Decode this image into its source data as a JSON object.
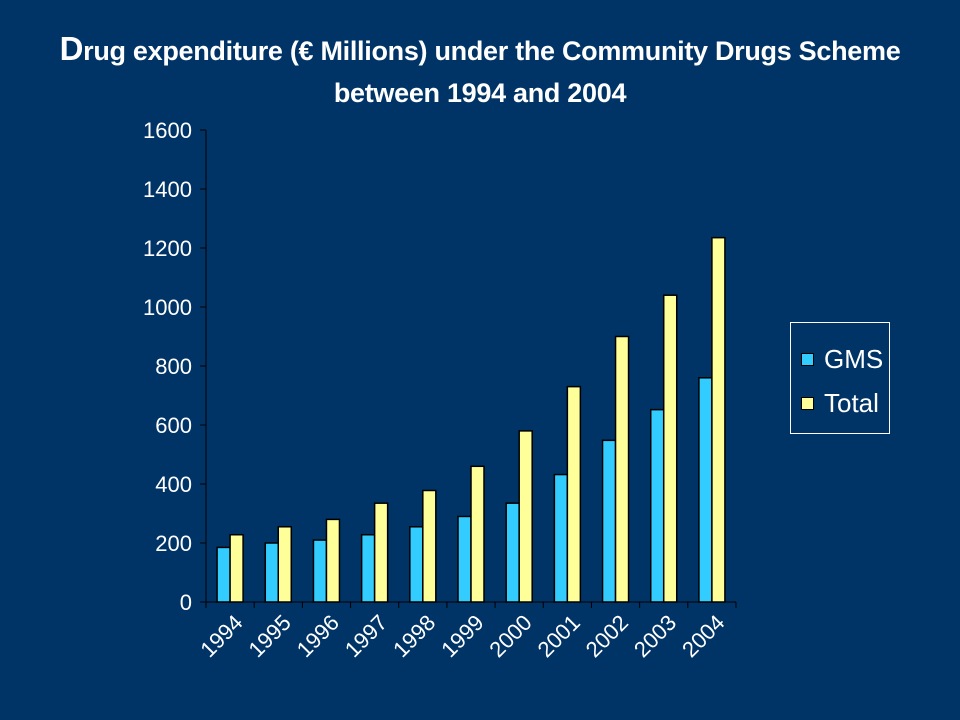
{
  "title": {
    "line1_first": "D",
    "line1_rest": "rug expenditure (€ Millions) under the Community Drugs Scheme",
    "line2": "between 1994 and 2004"
  },
  "colors": {
    "background": "#003366",
    "gms": "#33CCFF",
    "total": "#FFFF99"
  },
  "chart_data": {
    "type": "bar",
    "title": "Drug expenditure (€ Millions) under the Community Drugs Scheme between 1994 and 2004",
    "categories": [
      "1994",
      "1995",
      "1996",
      "1997",
      "1998",
      "1999",
      "2000",
      "2001",
      "2002",
      "2003",
      "2004"
    ],
    "series": [
      {
        "name": "GMS",
        "values": [
          185,
          200,
          210,
          228,
          255,
          290,
          335,
          432,
          548,
          652,
          760
        ]
      },
      {
        "name": "Total",
        "values": [
          228,
          255,
          280,
          335,
          378,
          460,
          580,
          730,
          900,
          1040,
          1235
        ]
      }
    ],
    "ylim": [
      0,
      1600
    ],
    "yticks": [
      0,
      200,
      400,
      600,
      800,
      1000,
      1200,
      1400,
      1600
    ],
    "ytick_labels": [
      "0",
      "200",
      "400",
      "600",
      "800",
      "1000",
      "1200",
      "1400",
      "1600"
    ],
    "legend_position": "right",
    "grid": false
  }
}
